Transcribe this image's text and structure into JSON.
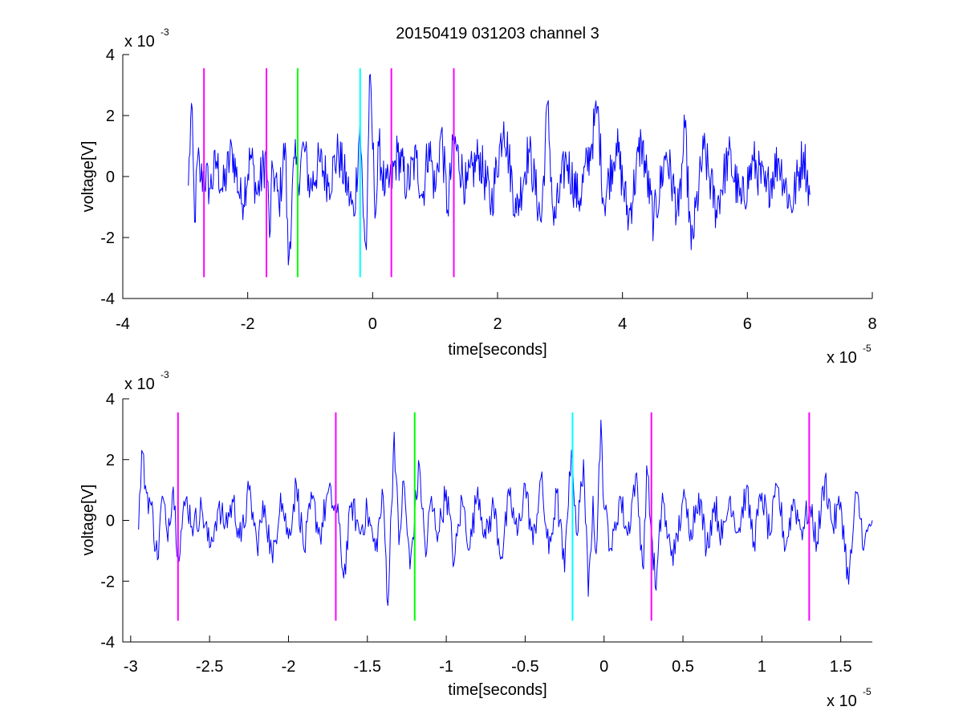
{
  "title": "20150419 031203 channel 3",
  "colors": {
    "signal": "#0000ff",
    "marker_magenta": "#ff00ff",
    "marker_green": "#00ff00",
    "marker_cyan": "#00ffff",
    "axes": "#000000"
  },
  "chart_data": [
    {
      "type": "line",
      "title": "20150419 031203 channel 3",
      "xlabel": "time[seconds]",
      "ylabel": "voltage[V]",
      "x_multiplier": "x 10",
      "x_exponent": "-5",
      "y_multiplier": "x 10",
      "y_exponent": "-3",
      "xlim": [
        -4,
        8
      ],
      "ylim": [
        -4,
        4
      ],
      "xticks": [
        -4,
        -2,
        0,
        2,
        4,
        6,
        8
      ],
      "xtick_labels": [
        "-4",
        "-2",
        "0",
        "2",
        "4",
        "6",
        "8"
      ],
      "yticks": [
        -4,
        -2,
        0,
        2,
        4
      ],
      "ytick_labels": [
        "-4",
        "-2",
        "0",
        "2",
        "4"
      ],
      "grid": false,
      "signal_range": [
        -2.95,
        7.05
      ],
      "markers": [
        {
          "x": -2.7,
          "color": "magenta",
          "ymin": -3.3,
          "ymax": 3.55
        },
        {
          "x": -1.7,
          "color": "magenta",
          "ymin": -3.3,
          "ymax": 3.55
        },
        {
          "x": -1.2,
          "color": "green",
          "ymin": -3.3,
          "ymax": 3.55
        },
        {
          "x": -0.2,
          "color": "cyan",
          "ymin": -3.3,
          "ymax": 3.55
        },
        {
          "x": 0.3,
          "color": "magenta",
          "ymin": -3.3,
          "ymax": 3.55
        },
        {
          "x": 1.3,
          "color": "magenta",
          "ymin": -3.3,
          "ymax": 3.55
        }
      ],
      "series": [
        {
          "x": [
            -2.95,
            -2.9,
            -2.85,
            -2.8,
            -2.75,
            -2.7,
            -2.6,
            -2.5,
            -2.4,
            -2.25,
            -2.1,
            -1.95,
            -1.85,
            -1.7,
            -1.65,
            -1.6,
            -1.5,
            -1.4,
            -1.35,
            -1.25,
            -1.2,
            -1.1,
            -1.0,
            -0.85,
            -0.7,
            -0.55,
            -0.4,
            -0.3,
            -0.2,
            -0.15,
            -0.1,
            -0.05,
            0.05,
            0.1,
            0.2,
            0.3,
            0.4,
            0.55,
            0.7,
            0.8,
            0.9,
            1.0,
            1.1,
            1.2,
            1.3,
            1.5,
            1.7,
            1.9,
            2.1,
            2.3,
            2.5,
            2.7,
            2.8,
            2.9,
            3.1,
            3.3,
            3.5,
            3.6,
            3.7,
            3.9,
            4.1,
            4.3,
            4.5,
            4.7,
            4.9,
            5.0,
            5.1,
            5.3,
            5.5,
            5.7,
            5.9,
            6.1,
            6.3,
            6.5,
            6.7,
            6.9,
            7.0
          ],
          "y": [
            -0.3,
            2.4,
            -1.5,
            0.6,
            -0.1,
            0.1,
            -0.4,
            0.5,
            -0.5,
            0.9,
            -0.9,
            0.7,
            -0.6,
            0.7,
            -2.0,
            0.3,
            -0.9,
            1.1,
            -2.9,
            0.6,
            -0.1,
            1.0,
            -0.4,
            0.5,
            -0.2,
            0.8,
            -0.4,
            -1.3,
            1.8,
            -1.3,
            -2.4,
            3.3,
            -1.2,
            1.0,
            -0.5,
            -0.2,
            0.8,
            -0.3,
            0.6,
            -0.7,
            1.1,
            -0.5,
            1.5,
            -1.1,
            1.2,
            -0.4,
            0.7,
            -0.9,
            1.8,
            -1.2,
            0.9,
            -1.5,
            2.4,
            -1.6,
            0.6,
            -0.8,
            1.0,
            2.3,
            -0.9,
            1.1,
            -1.4,
            1.2,
            -1.5,
            0.8,
            -1.3,
            1.6,
            -2.4,
            0.9,
            -1.1,
            0.7,
            -0.9,
            0.5,
            -0.5,
            0.6,
            -1.0,
            0.8,
            -0.6
          ]
        }
      ]
    },
    {
      "type": "line",
      "xlabel": "time[seconds]",
      "ylabel": "voltage[V]",
      "x_multiplier": "x 10",
      "x_exponent": "-5",
      "y_multiplier": "x 10",
      "y_exponent": "-3",
      "xlim": [
        -3.05,
        1.7
      ],
      "ylim": [
        -4,
        4
      ],
      "xticks": [
        -3,
        -2.5,
        -2,
        -1.5,
        -1,
        -0.5,
        0,
        0.5,
        1,
        1.5
      ],
      "xtick_labels": [
        "-3",
        "-2.5",
        "-2",
        "-1.5",
        "-1",
        "-0.5",
        "0",
        "0.5",
        "1",
        "1.5"
      ],
      "yticks": [
        -4,
        -2,
        0,
        2,
        4
      ],
      "ytick_labels": [
        "-4",
        "-2",
        "0",
        "2",
        "4"
      ],
      "grid": false,
      "signal_range": [
        -2.95,
        1.7
      ],
      "markers": [
        {
          "x": -2.7,
          "color": "magenta",
          "ymin": -3.3,
          "ymax": 3.55
        },
        {
          "x": -1.7,
          "color": "magenta",
          "ymin": -3.3,
          "ymax": 3.55
        },
        {
          "x": -1.2,
          "color": "green",
          "ymin": -3.3,
          "ymax": 3.55
        },
        {
          "x": -0.2,
          "color": "cyan",
          "ymin": -3.3,
          "ymax": 3.55
        },
        {
          "x": 0.3,
          "color": "magenta",
          "ymin": -3.3,
          "ymax": 3.55
        },
        {
          "x": 1.3,
          "color": "magenta",
          "ymin": -3.3,
          "ymax": 3.55
        }
      ],
      "series": [
        {
          "x": [
            -2.95,
            -2.93,
            -2.9,
            -2.87,
            -2.83,
            -2.8,
            -2.77,
            -2.73,
            -2.7,
            -2.65,
            -2.6,
            -2.55,
            -2.5,
            -2.45,
            -2.4,
            -2.35,
            -2.3,
            -2.25,
            -2.2,
            -2.15,
            -2.1,
            -2.05,
            -2.0,
            -1.95,
            -1.9,
            -1.85,
            -1.8,
            -1.75,
            -1.7,
            -1.68,
            -1.65,
            -1.6,
            -1.55,
            -1.5,
            -1.45,
            -1.4,
            -1.37,
            -1.33,
            -1.3,
            -1.27,
            -1.23,
            -1.2,
            -1.17,
            -1.13,
            -1.1,
            -1.05,
            -1.0,
            -0.95,
            -0.9,
            -0.85,
            -0.8,
            -0.75,
            -0.7,
            -0.65,
            -0.6,
            -0.55,
            -0.5,
            -0.45,
            -0.4,
            -0.35,
            -0.3,
            -0.25,
            -0.22,
            -0.2,
            -0.17,
            -0.13,
            -0.1,
            -0.07,
            -0.05,
            -0.02,
            0.0,
            0.05,
            0.1,
            0.15,
            0.2,
            0.25,
            0.27,
            0.3,
            0.33,
            0.37,
            0.4,
            0.45,
            0.5,
            0.55,
            0.6,
            0.65,
            0.7,
            0.75,
            0.8,
            0.85,
            0.9,
            0.95,
            1.0,
            1.05,
            1.1,
            1.15,
            1.2,
            1.25,
            1.3,
            1.35,
            1.4,
            1.45,
            1.5,
            1.55,
            1.6,
            1.65,
            1.7
          ],
          "y": [
            -0.3,
            2.3,
            0.9,
            0.5,
            -1.3,
            0.8,
            -0.4,
            1.1,
            -1.1,
            0.7,
            -0.2,
            0.4,
            -0.9,
            0.3,
            -0.1,
            0.6,
            -0.7,
            1.0,
            -0.8,
            0.5,
            -1.4,
            0.9,
            -0.6,
            1.2,
            -1.0,
            0.7,
            -0.5,
            0.9,
            0.3,
            -0.1,
            -1.9,
            0.6,
            -0.4,
            0.3,
            -1.0,
            0.8,
            -2.8,
            2.9,
            -0.8,
            1.3,
            -1.6,
            0.2,
            1.8,
            -1.2,
            0.6,
            -0.4,
            1.0,
            -1.4,
            0.7,
            -0.9,
            1.1,
            -0.6,
            0.5,
            -1.2,
            0.8,
            -0.5,
            1.2,
            -0.8,
            1.4,
            -1.1,
            0.9,
            -1.7,
            1.6,
            1.9,
            -0.5,
            2.0,
            -2.5,
            0.8,
            -1.1,
            3.3,
            0.4,
            -1.0,
            0.8,
            -0.5,
            1.5,
            -1.6,
            1.8,
            -0.4,
            -2.3,
            0.9,
            -0.6,
            -1.1,
            0.7,
            -0.3,
            0.9,
            -0.9,
            0.6,
            -0.6,
            0.8,
            -0.4,
            1.0,
            -0.7,
            0.9,
            -0.5,
            1.1,
            -0.9,
            0.7,
            -0.3,
            0.4,
            -0.7,
            1.4,
            -0.2,
            0.6,
            -2.1,
            0.9,
            -0.8,
            0.0
          ]
        }
      ]
    }
  ]
}
